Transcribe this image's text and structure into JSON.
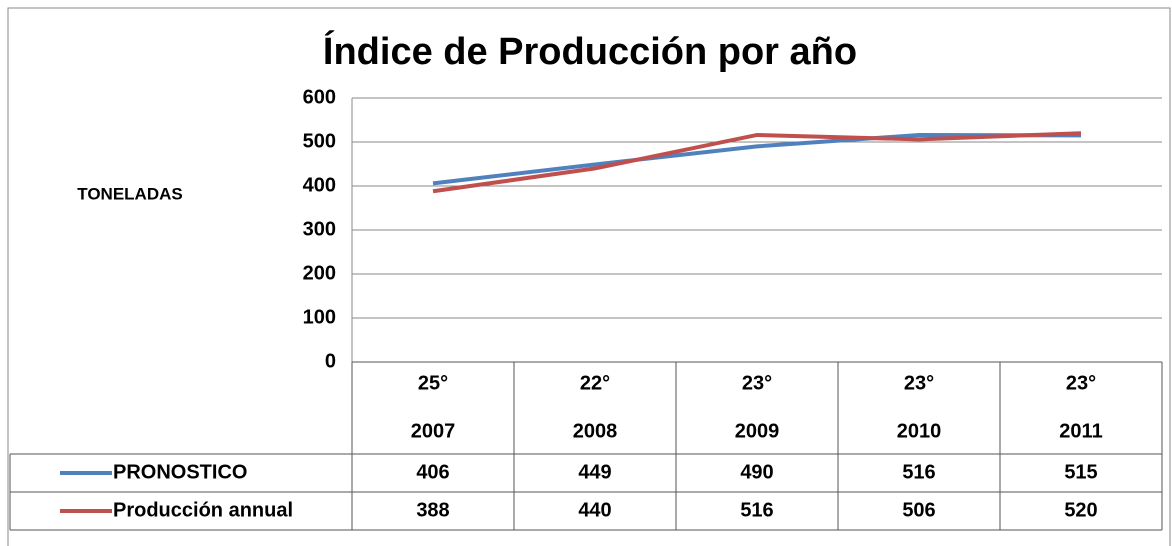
{
  "chart_data": {
    "type": "line",
    "title": "Índice de Producción por año",
    "y_label": "TONELADAS",
    "categories": [
      [
        "25°",
        "2007"
      ],
      [
        "22°",
        "2008"
      ],
      [
        "23°",
        "2009"
      ],
      [
        "23°",
        "2010"
      ],
      [
        "23°",
        "2011"
      ]
    ],
    "series": [
      {
        "name": "PRONOSTICO",
        "color": "#4f81bd",
        "values": [
          406,
          449,
          490,
          516,
          515
        ]
      },
      {
        "name": "Producción annual",
        "color": "#c0504d",
        "values": [
          388,
          440,
          516,
          506,
          520
        ]
      }
    ],
    "ylim": [
      0,
      600
    ],
    "yticks": [
      0,
      100,
      200,
      300,
      400,
      500,
      600
    ],
    "grid": true
  }
}
